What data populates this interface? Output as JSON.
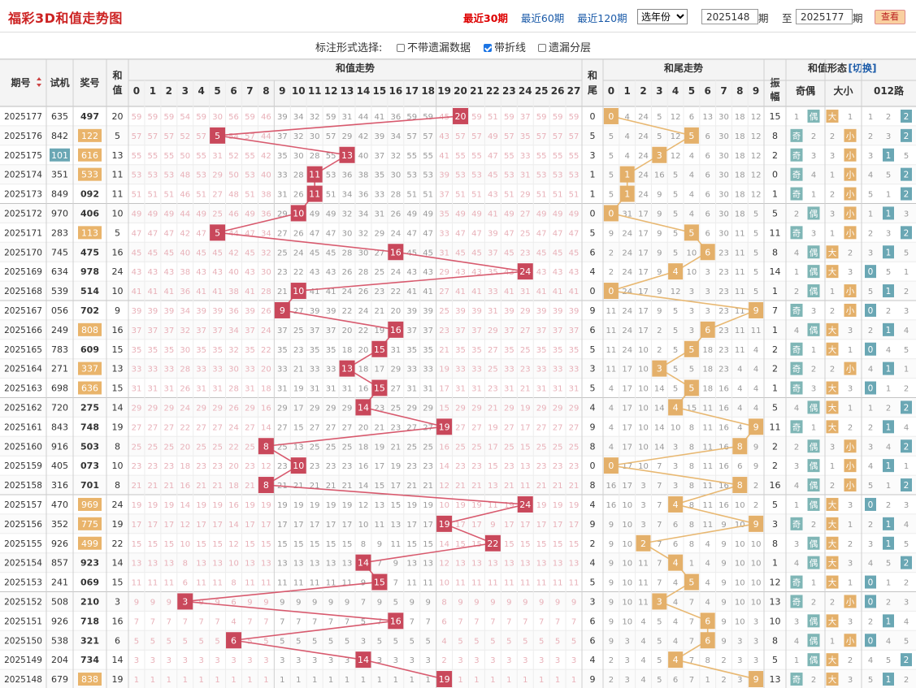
{
  "page": {
    "title": "福彩3D和值走势图"
  },
  "nav": {
    "recent30": "最近30期",
    "recent60": "最近60期",
    "recent120": "最近120期"
  },
  "year_select": {
    "value": "选年份"
  },
  "period_from": {
    "value": "2025148",
    "label": "期"
  },
  "period_to_label": "至",
  "period_to": {
    "value": "2025177",
    "label": "期"
  },
  "query_button": "查看",
  "options": {
    "label": "标注形式选择:",
    "items": [
      {
        "label": "不带遗漏数据",
        "checked": false
      },
      {
        "label": "带折线",
        "checked": true
      },
      {
        "label": "遗漏分层",
        "checked": false
      }
    ]
  },
  "headers": {
    "period": "期号",
    "test": "试机",
    "prize": "奖号",
    "sum": "和值",
    "sum_trend": "和值走势",
    "tail": "和尾",
    "tail_trend": "和尾走势",
    "form": "和值形态",
    "switch": "[切换]",
    "amplitude": "振幅",
    "odd_even": "奇偶",
    "big_small": "大小",
    "road012": "012路"
  },
  "sum_columns": [
    "0",
    "1",
    "2",
    "3",
    "4",
    "5",
    "6",
    "7",
    "8",
    "9",
    "10",
    "11",
    "12",
    "13",
    "14",
    "15",
    "16",
    "17",
    "18",
    "19",
    "20",
    "21",
    "22",
    "23",
    "24",
    "25",
    "26",
    "27"
  ],
  "tail_columns": [
    "0",
    "1",
    "2",
    "3",
    "4",
    "5",
    "6",
    "7",
    "8",
    "9"
  ],
  "form_labels": {
    "odd": "奇",
    "even": "偶",
    "big": "大",
    "small": "小"
  },
  "colors": {
    "sum_mark": "#c9485b",
    "tail_mark": "#e4b06a",
    "sum_line": "#d85a6e",
    "tail_line": "#e8b872",
    "test_highlight": "#6aa7b4",
    "prize_highlight": "#e9b46b",
    "odd_even_mark": "#7fb6b6",
    "big_small_mark": "#e4b06a",
    "road_mark": "#6aa7b4"
  },
  "rows": [
    {
      "period": "2025177",
      "test": "635",
      "prize": "497",
      "sum": 20
    },
    {
      "period": "2025176",
      "test": "842",
      "prize": "122",
      "sum": 5
    },
    {
      "period": "2025175",
      "test": "101",
      "prize": "616",
      "sum": 13
    },
    {
      "period": "2025174",
      "test": "351",
      "prize": "533",
      "sum": 11
    },
    {
      "period": "2025173",
      "test": "849",
      "prize": "092",
      "sum": 11
    },
    {
      "period": "2025172",
      "test": "970",
      "prize": "406",
      "sum": 10
    },
    {
      "period": "2025171",
      "test": "283",
      "prize": "113",
      "sum": 5
    },
    {
      "period": "2025170",
      "test": "745",
      "prize": "475",
      "sum": 16
    },
    {
      "period": "2025169",
      "test": "634",
      "prize": "978",
      "sum": 24
    },
    {
      "period": "2025168",
      "test": "539",
      "prize": "514",
      "sum": 10
    },
    {
      "period": "2025167",
      "test": "056",
      "prize": "702",
      "sum": 9
    },
    {
      "period": "2025166",
      "test": "249",
      "prize": "808",
      "sum": 16
    },
    {
      "period": "2025165",
      "test": "783",
      "prize": "609",
      "sum": 15
    },
    {
      "period": "2025164",
      "test": "271",
      "prize": "337",
      "sum": 13
    },
    {
      "period": "2025163",
      "test": "698",
      "prize": "636",
      "sum": 15
    },
    {
      "period": "2025162",
      "test": "720",
      "prize": "275",
      "sum": 14
    },
    {
      "period": "2025161",
      "test": "843",
      "prize": "748",
      "sum": 19
    },
    {
      "period": "2025160",
      "test": "916",
      "prize": "503",
      "sum": 8
    },
    {
      "period": "2025159",
      "test": "405",
      "prize": "073",
      "sum": 10
    },
    {
      "period": "2025158",
      "test": "316",
      "prize": "701",
      "sum": 8
    },
    {
      "period": "2025157",
      "test": "470",
      "prize": "969",
      "sum": 24
    },
    {
      "period": "2025156",
      "test": "352",
      "prize": "775",
      "sum": 19
    },
    {
      "period": "2025155",
      "test": "926",
      "prize": "499",
      "sum": 22
    },
    {
      "period": "2025154",
      "test": "857",
      "prize": "923",
      "sum": 14
    },
    {
      "period": "2025153",
      "test": "241",
      "prize": "069",
      "sum": 15
    },
    {
      "period": "2025152",
      "test": "508",
      "prize": "210",
      "sum": 3
    },
    {
      "period": "2025151",
      "test": "926",
      "prize": "718",
      "sum": 16
    },
    {
      "period": "2025150",
      "test": "538",
      "prize": "321",
      "sum": 6
    },
    {
      "period": "2025149",
      "test": "204",
      "prize": "734",
      "sum": 14
    },
    {
      "period": "2025148",
      "test": "679",
      "prize": "838",
      "sum": 19
    }
  ],
  "chart_data": {
    "type": "line",
    "title": "和值走势",
    "x": [
      "2025177",
      "2025176",
      "2025175",
      "2025174",
      "2025173",
      "2025172",
      "2025171",
      "2025170",
      "2025169",
      "2025168",
      "2025167",
      "2025166",
      "2025165",
      "2025164",
      "2025163",
      "2025162",
      "2025161",
      "2025160",
      "2025159",
      "2025158",
      "2025157",
      "2025156",
      "2025155",
      "2025154",
      "2025153",
      "2025152",
      "2025151",
      "2025150",
      "2025149",
      "2025148"
    ],
    "series": [
      {
        "values": [
          20,
          5,
          13,
          11,
          11,
          10,
          5,
          16,
          24,
          10,
          9,
          16,
          15,
          13,
          15,
          14,
          19,
          8,
          10,
          8,
          24,
          19,
          22,
          14,
          15,
          3,
          16,
          6,
          14,
          19
        ]
      },
      {
        "values": [
          0,
          5,
          3,
          1,
          1,
          0,
          5,
          6,
          4,
          0,
          9,
          6,
          5,
          3,
          5,
          4,
          9,
          8,
          0,
          8,
          4,
          9,
          2,
          4,
          5,
          3,
          6,
          6,
          4,
          9
        ]
      }
    ],
    "ylim": [
      0,
      27
    ]
  }
}
